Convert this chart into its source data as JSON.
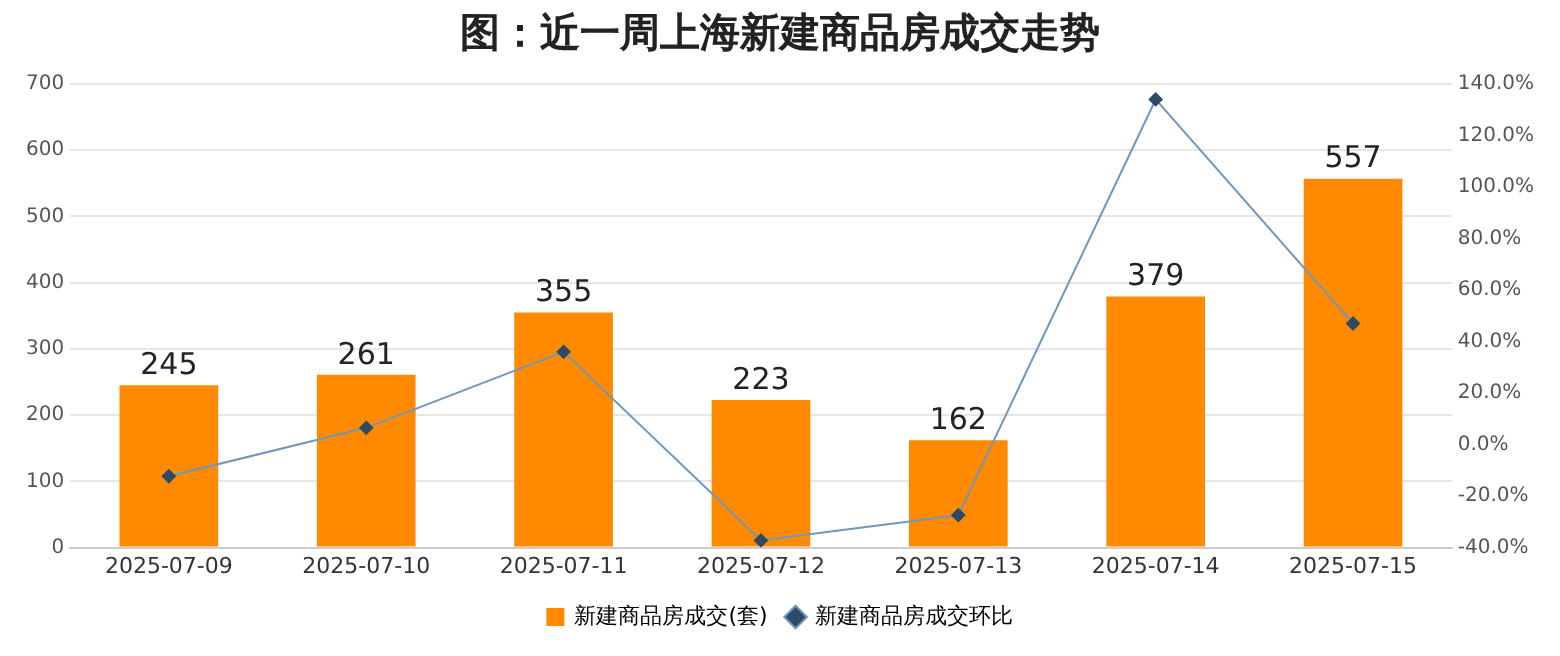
{
  "chart_data": {
    "type": "bar",
    "title": "图：近一周上海新建商品房成交走势",
    "categories": [
      "2025-07-09",
      "2025-07-10",
      "2025-07-11",
      "2025-07-12",
      "2025-07-13",
      "2025-07-14",
      "2025-07-15"
    ],
    "series": [
      {
        "name": "新建商品房成交(套)",
        "color": "#ff8a00",
        "values": [
          245,
          261,
          355,
          223,
          162,
          379,
          557
        ],
        "data_labels": true
      },
      {
        "name": "新建商品房成交环比",
        "type": "line",
        "axis": "y2",
        "color": "#6f97bd",
        "marker": "diamond",
        "values": [
          -12.3,
          6.5,
          36.0,
          -37.2,
          -27.4,
          134.0,
          47.0
        ]
      }
    ],
    "ylim": [
      0,
      700
    ],
    "yticks": [
      0,
      100,
      200,
      300,
      400,
      500,
      600,
      700
    ],
    "y2lim": [
      -40,
      140
    ],
    "y2ticks": [
      {
        "value": -40,
        "label": "-40.0%"
      },
      {
        "value": -20,
        "label": "-20.0%"
      },
      {
        "value": 0,
        "label": "0.0%"
      },
      {
        "value": 20,
        "label": "20.0%"
      },
      {
        "value": 40,
        "label": "40.0%"
      },
      {
        "value": 60,
        "label": "60.0%"
      },
      {
        "value": 80,
        "label": "80.0%"
      },
      {
        "value": 100,
        "label": "100.0%"
      },
      {
        "value": 120,
        "label": "120.0%"
      },
      {
        "value": 140,
        "label": "140.0%"
      }
    ],
    "grid": "y",
    "legend": "bottom"
  }
}
